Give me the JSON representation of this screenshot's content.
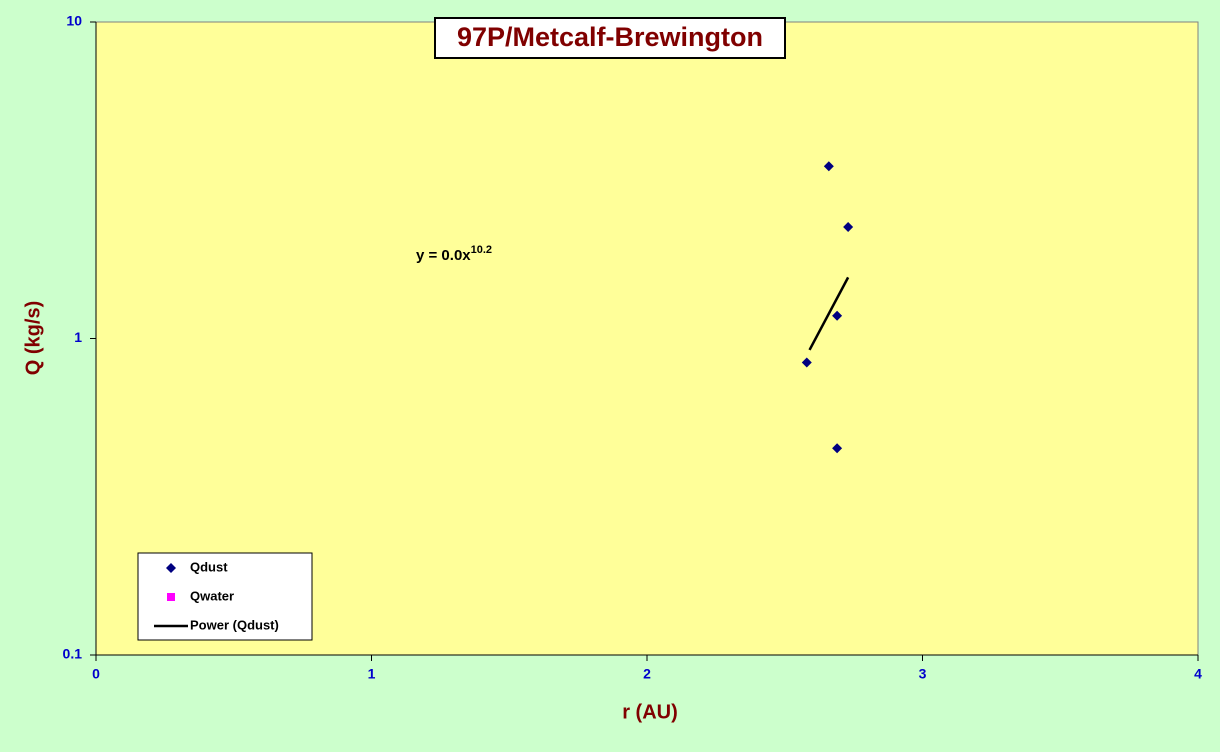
{
  "chart_data": {
    "type": "scatter",
    "title": "97P/Metcalf-Brewington",
    "x_label": "r (AU)",
    "y_label": "Q (kg/s)",
    "xlim": [
      0,
      4
    ],
    "xticks": [
      0,
      1,
      2,
      3,
      4
    ],
    "ylim": [
      0.1,
      10
    ],
    "yticks": [
      0.1,
      1,
      10
    ],
    "y_log": true,
    "legend": "bottom-left",
    "annotation": {
      "text": "y = 0.0x",
      "superscript": "10.2"
    },
    "series": [
      {
        "name": "Qdust",
        "color": "#000080",
        "mode": "markers",
        "marker": "diamond",
        "x": [
          2.66,
          2.73,
          2.69,
          2.58,
          2.69
        ],
        "values": [
          3.5,
          2.25,
          1.18,
          0.84,
          0.45
        ]
      },
      {
        "name": "Qwater",
        "color": "#ff00ff",
        "mode": "markers",
        "marker": "square",
        "x": [],
        "values": []
      },
      {
        "name": "Power (Qdust)",
        "color": "#000000",
        "mode": "line",
        "x": [
          2.59,
          2.73
        ],
        "values": [
          0.92,
          1.56
        ]
      }
    ]
  }
}
